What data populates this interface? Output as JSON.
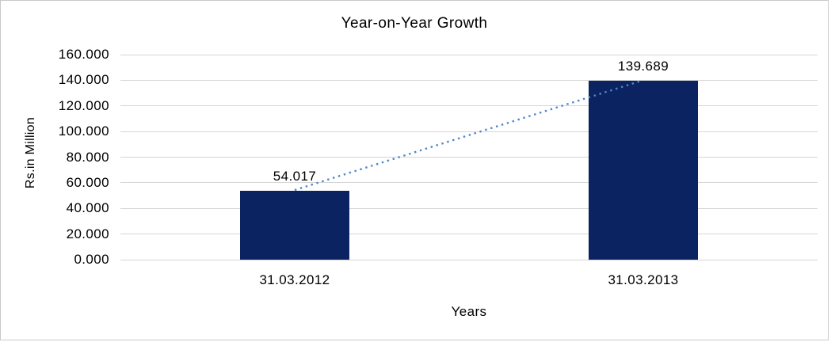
{
  "chart_data": {
    "type": "bar",
    "title": "Year-on-Year Growth",
    "categories": [
      "31.03.2012",
      "31.03.2013"
    ],
    "values": [
      54.017,
      139.689
    ],
    "data_labels": [
      "54.017",
      "139.689"
    ],
    "xlabel": "Years",
    "ylabel": "Rs.in Million",
    "ylim": [
      0,
      160
    ],
    "ytick_step": 20,
    "ytick_labels": [
      "0.000",
      "20.000",
      "40.000",
      "60.000",
      "80.000",
      "100.000",
      "120.000",
      "140.000",
      "160.000"
    ],
    "grid": true,
    "legend": "none",
    "trendline": {
      "type": "linear-dotted",
      "connects": "bar tops"
    },
    "colors": {
      "bar": "#0B2360",
      "trendline": "#4F86CA",
      "gridline": "#D6D6D6",
      "panel_border": "#C9C9C9",
      "text": "#000000",
      "background": "#FFFFFF"
    }
  }
}
